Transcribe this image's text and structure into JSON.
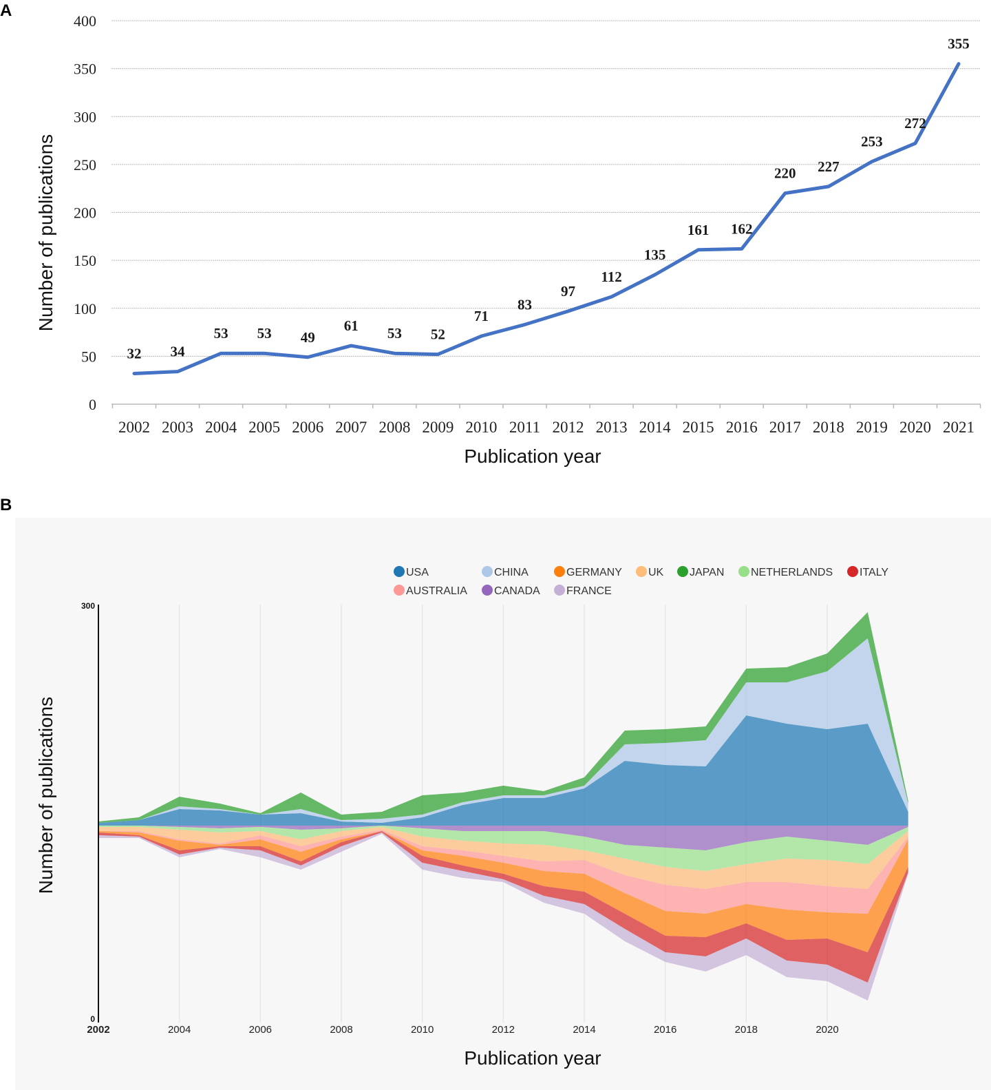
{
  "chart_data": [
    {
      "panel": "A",
      "type": "line",
      "title": "",
      "xlabel": "Publication year",
      "ylabel": "Number of publications",
      "ylim": [
        0,
        400
      ],
      "yticks": [
        0,
        50,
        100,
        150,
        200,
        250,
        300,
        350,
        400
      ],
      "categories": [
        "2002",
        "2003",
        "2004",
        "2005",
        "2006",
        "2007",
        "2008",
        "2009",
        "2010",
        "2011",
        "2012",
        "2013",
        "2014",
        "2015",
        "2016",
        "2017",
        "2018",
        "2019",
        "2020",
        "2021"
      ],
      "values": [
        32,
        34,
        53,
        53,
        49,
        61,
        53,
        52,
        71,
        83,
        97,
        112,
        135,
        161,
        162,
        220,
        227,
        253,
        272,
        355
      ],
      "line_color": "#4472c4",
      "grid": true
    },
    {
      "panel": "B",
      "type": "area",
      "subtype": "streamgraph",
      "xlabel": "Publication year",
      "ylabel": "Number of publications",
      "ylim": [
        0,
        300
      ],
      "ytick_labels": [
        "0",
        "300"
      ],
      "xticks": [
        "2002",
        "2004",
        "2006",
        "2008",
        "2010",
        "2012",
        "2014",
        "2016",
        "2018",
        "2020"
      ],
      "x": [
        2002,
        2003,
        2004,
        2005,
        2006,
        2007,
        2008,
        2009,
        2010,
        2011,
        2012,
        2013,
        2014,
        2015,
        2016,
        2017,
        2018,
        2019,
        2020,
        2021,
        2022
      ],
      "legend_position": "top",
      "series": [
        {
          "name": "USA",
          "color": "#1f77b4",
          "values": [
            2,
            4,
            12,
            11,
            8,
            9,
            3,
            2,
            6,
            15,
            20,
            20,
            27,
            47,
            44,
            43,
            80,
            74,
            70,
            74,
            10
          ]
        },
        {
          "name": "CHINA",
          "color": "#aec7e8",
          "values": [
            0,
            0,
            2,
            1,
            0,
            3,
            1,
            3,
            2,
            2,
            2,
            2,
            2,
            12,
            16,
            19,
            24,
            30,
            42,
            62,
            6
          ]
        },
        {
          "name": "GERMANY",
          "color": "#ff7f0e",
          "values": [
            1,
            2,
            7,
            1,
            5,
            7,
            2,
            0,
            4,
            7,
            8,
            11,
            13,
            15,
            18,
            17,
            14,
            22,
            19,
            28,
            20
          ]
        },
        {
          "name": "UK",
          "color": "#ffbb78",
          "values": [
            3,
            3,
            7,
            8,
            3,
            5,
            4,
            2,
            7,
            7,
            9,
            12,
            7,
            12,
            13,
            13,
            13,
            17,
            19,
            18,
            4
          ]
        },
        {
          "name": "JAPAN",
          "color": "#2ca02c",
          "values": [
            1,
            2,
            7,
            4,
            1,
            12,
            4,
            5,
            14,
            7,
            7,
            3,
            6,
            10,
            10,
            10,
            10,
            11,
            13,
            19,
            2
          ]
        },
        {
          "name": "NETHERLANDS",
          "color": "#98df8a",
          "values": [
            1,
            1,
            2,
            3,
            3,
            7,
            2,
            1,
            6,
            7,
            9,
            10,
            10,
            10,
            14,
            15,
            16,
            16,
            14,
            14,
            3
          ]
        },
        {
          "name": "ITALY",
          "color": "#d62728",
          "values": [
            2,
            1,
            3,
            1,
            3,
            3,
            3,
            1,
            5,
            4,
            4,
            7,
            9,
            11,
            12,
            14,
            11,
            15,
            19,
            22,
            4
          ]
        },
        {
          "name": "AUSTRALIA",
          "color": "#ff9896",
          "values": [
            0,
            1,
            1,
            1,
            3,
            4,
            2,
            1,
            3,
            4,
            5,
            7,
            10,
            13,
            19,
            18,
            16,
            20,
            19,
            18,
            2
          ]
        },
        {
          "name": "CANADA",
          "color": "#9467bd",
          "values": [
            0,
            0,
            1,
            2,
            1,
            3,
            2,
            0,
            2,
            4,
            4,
            4,
            8,
            14,
            16,
            18,
            12,
            8,
            11,
            14,
            1
          ]
        },
        {
          "name": "FRANCE",
          "color": "#c5b0d5",
          "values": [
            2,
            1,
            2,
            1,
            5,
            3,
            4,
            1,
            5,
            5,
            2,
            5,
            7,
            9,
            7,
            11,
            12,
            12,
            12,
            13,
            1
          ]
        }
      ]
    }
  ],
  "panelA": {
    "letter": "A"
  },
  "panelB": {
    "letter": "B"
  }
}
